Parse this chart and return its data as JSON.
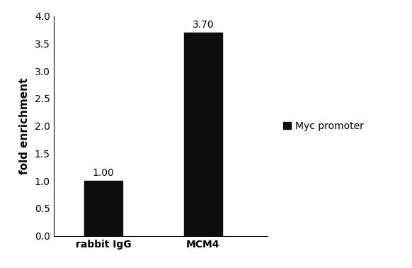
{
  "categories": [
    "rabbit IgG",
    "MCM4"
  ],
  "values": [
    1.0,
    3.7
  ],
  "bar_color": "#0d0d0d",
  "bar_width": 0.38,
  "ylabel": "fold enrichment",
  "ylim": [
    0,
    4.0
  ],
  "yticks": [
    0.0,
    0.5,
    1.0,
    1.5,
    2.0,
    2.5,
    3.0,
    3.5,
    4.0
  ],
  "value_labels": [
    "1.00",
    "3.70"
  ],
  "legend_label": "Myc promoter",
  "legend_color": "#0d0d0d",
  "background_color": "#ffffff",
  "ylabel_fontsize": 11,
  "tick_fontsize": 10,
  "label_fontsize": 10,
  "value_label_fontsize": 10,
  "legend_fontsize": 10
}
